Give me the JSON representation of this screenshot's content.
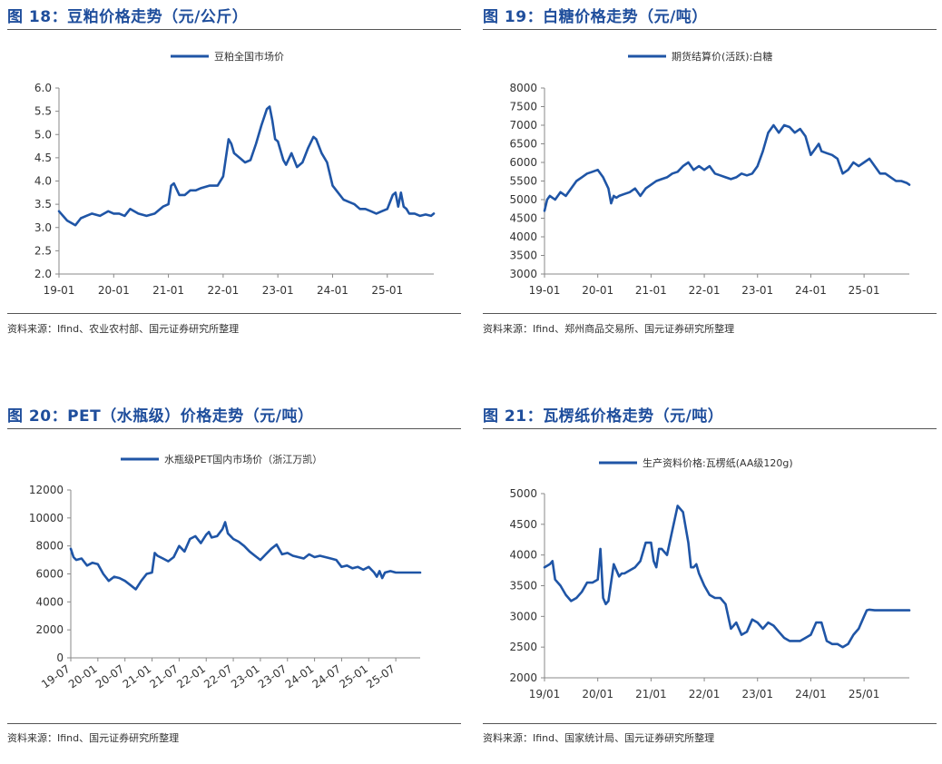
{
  "charts": [
    {
      "id": "fig18",
      "title": "图 18：豆粕价格走势（元/公斤）",
      "source": "资料来源：Ifind、农业农村部、国元证券研究所整理",
      "legend": "豆粕全国市场价",
      "color": "#1f55a6",
      "y_ticks": [
        "6.0",
        "5.5",
        "5.0",
        "4.5",
        "4.0",
        "3.5",
        "3.0",
        "2.5",
        "2.0"
      ],
      "x_ticks": [
        "19-01",
        "20-01",
        "21-01",
        "22-01",
        "23-01",
        "24-01",
        "25-01"
      ],
      "x_rotated": false
    },
    {
      "id": "fig19",
      "title": "图 19：白糖价格走势（元/吨）",
      "source": "资料来源：Ifind、郑州商品交易所、国元证券研究所整理",
      "legend": "期货结算价(活跃):白糖",
      "color": "#1f55a6",
      "y_ticks": [
        "8000",
        "7500",
        "7000",
        "6500",
        "6000",
        "5500",
        "5000",
        "4500",
        "4000",
        "3500",
        "3000"
      ],
      "x_ticks": [
        "19-01",
        "20-01",
        "21-01",
        "22-01",
        "23-01",
        "24-01",
        "25-01"
      ],
      "x_rotated": false
    },
    {
      "id": "fig20",
      "title": "图 20：PET（水瓶级）价格走势（元/吨）",
      "source": "资料来源：Ifind、国元证券研究所整理",
      "legend": "水瓶级PET国内市场价（浙江万凯）",
      "color": "#1f55a6",
      "y_ticks": [
        "12000",
        "10000",
        "8000",
        "6000",
        "4000",
        "2000",
        "0"
      ],
      "x_ticks": [
        "19-07",
        "20-01",
        "20-07",
        "21-01",
        "21-07",
        "22-01",
        "22-07",
        "23-01",
        "23-07",
        "24-01",
        "24-07",
        "25-01",
        "25-07"
      ],
      "x_rotated": true
    },
    {
      "id": "fig21",
      "title": "图 21：瓦楞纸价格走势（元/吨）",
      "source": "资料来源：Ifind、国家统计局、国元证券研究所整理",
      "legend": "生产资料价格:瓦楞纸(AA级120g)",
      "color": "#1f55a6",
      "y_ticks": [
        "5000",
        "4500",
        "4000",
        "3500",
        "3000",
        "2500",
        "2000"
      ],
      "x_ticks": [
        "19/01",
        "20/01",
        "21/01",
        "22/01",
        "23/01",
        "24/01",
        "25/01"
      ],
      "x_rotated": false
    }
  ],
  "chart_data": [
    {
      "type": "line",
      "title": "图 18：豆粕价格走势（元/公斤）",
      "series": [
        {
          "name": "豆粕全国市场价",
          "values_note": "monthly approx"
        }
      ],
      "ylim": [
        2.0,
        6.0
      ],
      "xlim": [
        2019.0,
        2025.85
      ],
      "x": [
        2019.0,
        2019.15,
        2019.3,
        2019.4,
        2019.5,
        2019.6,
        2019.75,
        2019.9,
        2020.0,
        2020.1,
        2020.2,
        2020.3,
        2020.45,
        2020.6,
        2020.75,
        2020.9,
        2021.0,
        2021.05,
        2021.1,
        2021.2,
        2021.3,
        2021.4,
        2021.5,
        2021.6,
        2021.75,
        2021.9,
        2022.0,
        2022.05,
        2022.1,
        2022.15,
        2022.2,
        2022.3,
        2022.4,
        2022.5,
        2022.6,
        2022.7,
        2022.8,
        2022.85,
        2022.9,
        2022.95,
        2023.0,
        2023.1,
        2023.15,
        2023.25,
        2023.35,
        2023.45,
        2023.55,
        2023.65,
        2023.7,
        2023.8,
        2023.9,
        2024.0,
        2024.1,
        2024.2,
        2024.3,
        2024.4,
        2024.5,
        2024.6,
        2024.7,
        2024.8,
        2024.9,
        2025.0,
        2025.1,
        2025.15,
        2025.2,
        2025.25,
        2025.3,
        2025.35,
        2025.4,
        2025.5,
        2025.6,
        2025.7,
        2025.8,
        2025.85
      ],
      "y": [
        3.35,
        3.15,
        3.05,
        3.2,
        3.25,
        3.3,
        3.25,
        3.35,
        3.3,
        3.3,
        3.25,
        3.4,
        3.3,
        3.25,
        3.3,
        3.45,
        3.5,
        3.9,
        3.95,
        3.7,
        3.7,
        3.8,
        3.8,
        3.85,
        3.9,
        3.9,
        4.1,
        4.5,
        4.9,
        4.8,
        4.6,
        4.5,
        4.4,
        4.45,
        4.8,
        5.2,
        5.55,
        5.6,
        5.3,
        4.9,
        4.85,
        4.45,
        4.35,
        4.6,
        4.3,
        4.4,
        4.7,
        4.95,
        4.9,
        4.6,
        4.4,
        3.9,
        3.75,
        3.6,
        3.55,
        3.5,
        3.4,
        3.4,
        3.35,
        3.3,
        3.35,
        3.4,
        3.7,
        3.75,
        3.45,
        3.75,
        3.45,
        3.4,
        3.3,
        3.3,
        3.25,
        3.28,
        3.25,
        3.3
      ]
    },
    {
      "type": "line",
      "title": "图 19：白糖价格走势（元/吨）",
      "series": [
        {
          "name": "期货结算价(活跃):白糖"
        }
      ],
      "ylim": [
        3000,
        8000
      ],
      "xlim": [
        2019.0,
        2025.85
      ],
      "x": [
        2019.0,
        2019.05,
        2019.1,
        2019.2,
        2019.3,
        2019.4,
        2019.5,
        2019.6,
        2019.7,
        2019.8,
        2019.9,
        2020.0,
        2020.1,
        2020.2,
        2020.25,
        2020.3,
        2020.35,
        2020.4,
        2020.5,
        2020.6,
        2020.7,
        2020.8,
        2020.9,
        2021.0,
        2021.1,
        2021.2,
        2021.3,
        2021.4,
        2021.5,
        2021.6,
        2021.7,
        2021.8,
        2021.9,
        2022.0,
        2022.1,
        2022.2,
        2022.3,
        2022.4,
        2022.5,
        2022.6,
        2022.7,
        2022.8,
        2022.9,
        2023.0,
        2023.1,
        2023.2,
        2023.3,
        2023.4,
        2023.5,
        2023.6,
        2023.7,
        2023.8,
        2023.9,
        2024.0,
        2024.1,
        2024.15,
        2024.2,
        2024.3,
        2024.4,
        2024.5,
        2024.6,
        2024.7,
        2024.8,
        2024.9,
        2025.0,
        2025.1,
        2025.2,
        2025.3,
        2025.4,
        2025.5,
        2025.6,
        2025.7,
        2025.8,
        2025.85
      ],
      "y": [
        4700,
        5000,
        5100,
        5000,
        5200,
        5100,
        5300,
        5500,
        5600,
        5700,
        5750,
        5800,
        5600,
        5300,
        4900,
        5100,
        5050,
        5100,
        5150,
        5200,
        5300,
        5100,
        5300,
        5400,
        5500,
        5550,
        5600,
        5700,
        5750,
        5900,
        6000,
        5800,
        5900,
        5800,
        5900,
        5700,
        5650,
        5600,
        5550,
        5600,
        5700,
        5650,
        5700,
        5900,
        6300,
        6800,
        7000,
        6800,
        7000,
        6950,
        6800,
        6900,
        6700,
        6200,
        6400,
        6500,
        6300,
        6250,
        6200,
        6100,
        5700,
        5800,
        6000,
        5900,
        6000,
        6100,
        5900,
        5700,
        5700,
        5600,
        5500,
        5500,
        5450,
        5400
      ]
    },
    {
      "type": "line",
      "title": "图 20：PET（水瓶级）价格走势（元/吨）",
      "series": [
        {
          "name": "水瓶级PET国内市场价（浙江万凯）"
        }
      ],
      "ylim": [
        0,
        12000
      ],
      "xlim": [
        2019.5,
        2025.95
      ],
      "x": [
        2019.5,
        2019.55,
        2019.6,
        2019.7,
        2019.8,
        2019.9,
        2020.0,
        2020.1,
        2020.2,
        2020.3,
        2020.4,
        2020.5,
        2020.6,
        2020.7,
        2020.8,
        2020.9,
        2021.0,
        2021.05,
        2021.1,
        2021.2,
        2021.3,
        2021.4,
        2021.5,
        2021.55,
        2021.6,
        2021.7,
        2021.8,
        2021.9,
        2022.0,
        2022.05,
        2022.1,
        2022.2,
        2022.3,
        2022.35,
        2022.4,
        2022.5,
        2022.6,
        2022.7,
        2022.8,
        2022.9,
        2023.0,
        2023.1,
        2023.2,
        2023.3,
        2023.4,
        2023.5,
        2023.6,
        2023.7,
        2023.8,
        2023.9,
        2024.0,
        2024.1,
        2024.2,
        2024.3,
        2024.4,
        2024.5,
        2024.6,
        2024.7,
        2024.8,
        2024.9,
        2025.0,
        2025.1,
        2025.15,
        2025.2,
        2025.25,
        2025.3,
        2025.4,
        2025.5,
        2025.6,
        2025.7,
        2025.8,
        2025.9,
        2025.95
      ],
      "y": [
        7800,
        7200,
        7000,
        7100,
        6600,
        6800,
        6700,
        6000,
        5500,
        5800,
        5700,
        5500,
        5200,
        4900,
        5500,
        6000,
        6100,
        7500,
        7300,
        7100,
        6900,
        7200,
        8000,
        7800,
        7600,
        8500,
        8700,
        8200,
        8800,
        9000,
        8600,
        8700,
        9200,
        9700,
        8900,
        8500,
        8300,
        8000,
        7600,
        7300,
        7000,
        7400,
        7800,
        8100,
        7400,
        7500,
        7300,
        7200,
        7100,
        7400,
        7200,
        7300,
        7200,
        7100,
        7000,
        6500,
        6600,
        6400,
        6500,
        6300,
        6500,
        6100,
        5800,
        6200,
        5700,
        6100,
        6200,
        6100,
        6100,
        6100,
        6100,
        6100,
        6100
      ]
    },
    {
      "type": "line",
      "title": "图 21：瓦楞纸价格走势（元/吨）",
      "series": [
        {
          "name": "生产资料价格:瓦楞纸(AA级120g)"
        }
      ],
      "ylim": [
        2000,
        5000
      ],
      "xlim": [
        2019.0,
        2025.85
      ],
      "x": [
        2019.0,
        2019.1,
        2019.15,
        2019.2,
        2019.3,
        2019.4,
        2019.5,
        2019.6,
        2019.7,
        2019.8,
        2019.9,
        2020.0,
        2020.05,
        2020.1,
        2020.15,
        2020.2,
        2020.3,
        2020.4,
        2020.45,
        2020.5,
        2020.6,
        2020.7,
        2020.8,
        2020.9,
        2021.0,
        2021.05,
        2021.1,
        2021.15,
        2021.2,
        2021.3,
        2021.4,
        2021.5,
        2021.6,
        2021.7,
        2021.75,
        2021.8,
        2021.85,
        2021.9,
        2022.0,
        2022.1,
        2022.2,
        2022.3,
        2022.4,
        2022.5,
        2022.6,
        2022.7,
        2022.8,
        2022.9,
        2023.0,
        2023.1,
        2023.2,
        2023.3,
        2023.4,
        2023.5,
        2023.6,
        2023.7,
        2023.8,
        2023.9,
        2024.0,
        2024.1,
        2024.2,
        2024.3,
        2024.4,
        2024.5,
        2024.6,
        2024.7,
        2024.8,
        2024.9,
        2025.0,
        2025.05,
        2025.1,
        2025.2,
        2025.3,
        2025.4,
        2025.5,
        2025.6,
        2025.7,
        2025.8,
        2025.85
      ],
      "y": [
        3800,
        3850,
        3900,
        3600,
        3500,
        3350,
        3250,
        3300,
        3400,
        3550,
        3550,
        3600,
        4100,
        3300,
        3200,
        3250,
        3850,
        3650,
        3700,
        3700,
        3750,
        3800,
        3900,
        4200,
        4200,
        3900,
        3800,
        4100,
        4100,
        4000,
        4400,
        4800,
        4700,
        4200,
        3800,
        3800,
        3850,
        3700,
        3500,
        3350,
        3300,
        3300,
        3200,
        2800,
        2900,
        2700,
        2750,
        2950,
        2900,
        2800,
        2900,
        2850,
        2750,
        2650,
        2600,
        2600,
        2600,
        2650,
        2700,
        2900,
        2900,
        2600,
        2550,
        2550,
        2500,
        2550,
        2700,
        2800,
        3000,
        3100,
        3110,
        3100,
        3100,
        3100,
        3100,
        3100,
        3100,
        3100,
        3100
      ]
    }
  ]
}
